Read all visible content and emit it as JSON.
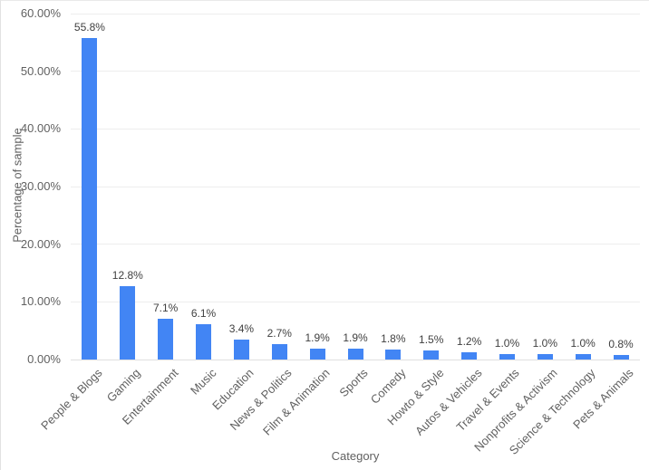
{
  "page": {
    "background": "#ffffff",
    "border_color": "#e9e9e9"
  },
  "chart_data": {
    "type": "bar",
    "title": "",
    "xlabel": "Category",
    "ylabel": "Percentage of sample",
    "categories": [
      "People & Blogs",
      "Gaming",
      "Entertainment",
      "Music",
      "Education",
      "News & Politics",
      "Film & Animation",
      "Sports",
      "Comedy",
      "Howto & Style",
      "Autos & Vehicles",
      "Travel & Events",
      "Nonprofits & Activism",
      "Science & Technology",
      "Pets & Animals"
    ],
    "values": [
      55.8,
      12.8,
      7.1,
      6.1,
      3.4,
      2.7,
      1.9,
      1.9,
      1.8,
      1.5,
      1.2,
      1.0,
      1.0,
      1.0,
      0.8
    ],
    "bar_labels": [
      "55.8%",
      "12.8%",
      "7.1%",
      "6.1%",
      "3.4%",
      "2.7%",
      "1.9%",
      "1.9%",
      "1.8%",
      "1.5%",
      "1.2%",
      "1.0%",
      "1.0%",
      "1.0%",
      "0.8%"
    ],
    "y_ticks": [
      {
        "value": 0,
        "label": "0.00%"
      },
      {
        "value": 10,
        "label": "10.00%"
      },
      {
        "value": 20,
        "label": "20.00%"
      },
      {
        "value": 30,
        "label": "30.00%"
      },
      {
        "value": 40,
        "label": "40.00%"
      },
      {
        "value": 50,
        "label": "50.00%"
      },
      {
        "value": 60,
        "label": "60.00%"
      }
    ],
    "ylim": [
      0,
      60
    ],
    "grid": true,
    "legend": "none",
    "colors": {
      "bar": "#4285f4",
      "gridline": "#ededed",
      "baseline": "#e0e0e0",
      "tick_text": "#616161",
      "annotation_text": "#404040",
      "axis_title_text": "#616161"
    }
  }
}
